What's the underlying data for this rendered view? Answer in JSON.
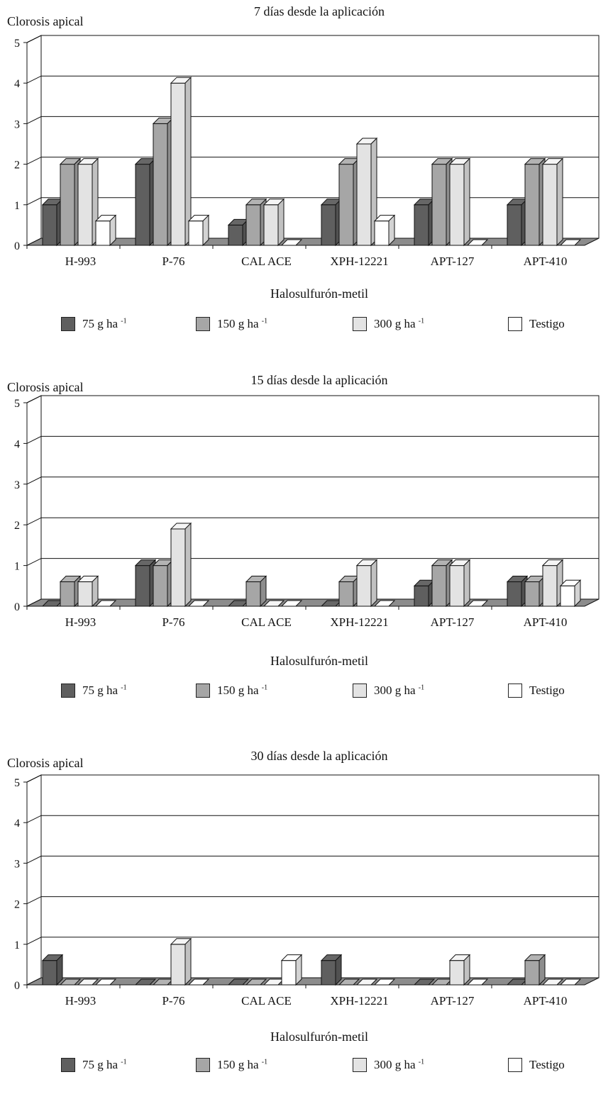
{
  "chart_data": [
    {
      "type": "bar",
      "title": "7 días desde la aplicación",
      "ylabel": "Clorosis apical",
      "xlabel": "Halosulfurón-metil",
      "ylim": [
        0,
        5
      ],
      "yticks": [
        0,
        1,
        2,
        3,
        4,
        5
      ],
      "categories": [
        "H-993",
        "P-76",
        "CAL ACE",
        "XPH-12221",
        "APT-127",
        "APT-410"
      ],
      "series": [
        {
          "name": "75 g ha -1",
          "values": [
            1,
            2,
            0.5,
            1,
            1,
            1
          ]
        },
        {
          "name": "150 g ha -1",
          "values": [
            2,
            3,
            1,
            2,
            2,
            2
          ]
        },
        {
          "name": "300 g ha -1",
          "values": [
            2,
            4,
            1,
            2.5,
            2,
            2
          ]
        },
        {
          "name": "Testigo",
          "values": [
            0.6,
            0.6,
            0,
            0.6,
            0,
            0
          ]
        }
      ]
    },
    {
      "type": "bar",
      "title": "15 días desde la aplicación",
      "ylabel": "Clorosis apical",
      "xlabel": "Halosulfurón-metil",
      "ylim": [
        0,
        5
      ],
      "yticks": [
        0,
        1,
        2,
        3,
        4,
        5
      ],
      "categories": [
        "H-993",
        "P-76",
        "CAL ACE",
        "XPH-12221",
        "APT-127",
        "APT-410"
      ],
      "series": [
        {
          "name": "75 g ha -1",
          "values": [
            0,
            1,
            0,
            0,
            0.5,
            0.6
          ]
        },
        {
          "name": "150 g ha -1",
          "values": [
            0.6,
            1,
            0.6,
            0.6,
            1,
            0.6
          ]
        },
        {
          "name": "300 g ha -1",
          "values": [
            0.6,
            1.9,
            0,
            1,
            1,
            1
          ]
        },
        {
          "name": "Testigo",
          "values": [
            0,
            0,
            0,
            0,
            0,
            0.5
          ]
        }
      ]
    },
    {
      "type": "bar",
      "title": "30 días desde la aplicación",
      "ylabel": "Clorosis apical",
      "xlabel": "Halosulfurón-metil",
      "ylim": [
        0,
        5
      ],
      "yticks": [
        0,
        1,
        2,
        3,
        4,
        5
      ],
      "categories": [
        "H-993",
        "P-76",
        "CAL ACE",
        "XPH-12221",
        "APT-127",
        "APT-410"
      ],
      "series": [
        {
          "name": "75 g ha -1",
          "values": [
            0.6,
            0,
            0,
            0.6,
            0,
            0
          ]
        },
        {
          "name": "150 g ha -1",
          "values": [
            0,
            0,
            0,
            0,
            0,
            0.6
          ]
        },
        {
          "name": "300 g ha -1",
          "values": [
            0,
            1,
            0,
            0,
            0.6,
            0
          ]
        },
        {
          "name": "Testigo",
          "values": [
            0,
            0,
            0.6,
            0,
            0,
            0
          ]
        }
      ]
    }
  ],
  "legend": {
    "items": [
      {
        "base": "75 g ha",
        "sup": "-1",
        "color": "#5f5f5f"
      },
      {
        "base": "150 g ha",
        "sup": "-1",
        "color": "#a6a6a6"
      },
      {
        "base": "300 g ha",
        "sup": "-1",
        "color": "#e3e3e3"
      },
      {
        "base": "Testigo",
        "sup": "",
        "color": "#ffffff"
      }
    ]
  }
}
